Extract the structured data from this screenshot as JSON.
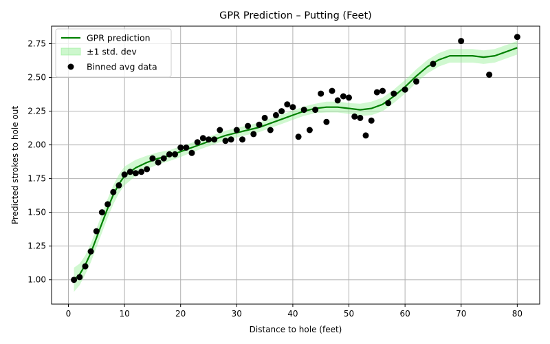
{
  "chart_data": {
    "type": "scatter",
    "title": "GPR Prediction – Putting (Feet)",
    "xlabel": "Distance to hole (feet)",
    "ylabel": "Predicted strokes to hole out",
    "xlim": [
      -3,
      84
    ],
    "ylim": [
      0.82,
      2.88
    ],
    "xticks": [
      0,
      10,
      20,
      30,
      40,
      50,
      60,
      70,
      80
    ],
    "yticks": [
      1.0,
      1.25,
      1.5,
      1.75,
      2.0,
      2.25,
      2.5,
      2.75
    ],
    "xtick_labels": [
      "0",
      "10",
      "20",
      "30",
      "40",
      "50",
      "60",
      "70",
      "80"
    ],
    "ytick_labels": [
      "1.00",
      "1.25",
      "1.50",
      "1.75",
      "2.00",
      "2.25",
      "2.50",
      "2.75"
    ],
    "grid": true,
    "legend_position": "top-left",
    "colors": {
      "prediction": "#008000",
      "band": "#90ee90",
      "points": "#000000",
      "grid": "#b0b0b0"
    },
    "series": [
      {
        "name": "GPR prediction",
        "kind": "line",
        "x": [
          1,
          2,
          3,
          4,
          5,
          6,
          7,
          8,
          9,
          10,
          12,
          14,
          16,
          18,
          20,
          22,
          24,
          26,
          28,
          30,
          32,
          34,
          36,
          38,
          40,
          42,
          44,
          46,
          48,
          50,
          52,
          54,
          56,
          58,
          60,
          62,
          64,
          66,
          68,
          70,
          72,
          74,
          76,
          78,
          80
        ],
        "y": [
          1.0,
          1.04,
          1.11,
          1.2,
          1.31,
          1.42,
          1.53,
          1.63,
          1.71,
          1.77,
          1.83,
          1.87,
          1.9,
          1.92,
          1.95,
          1.98,
          2.01,
          2.04,
          2.07,
          2.09,
          2.11,
          2.13,
          2.16,
          2.19,
          2.22,
          2.25,
          2.27,
          2.28,
          2.28,
          2.27,
          2.26,
          2.27,
          2.3,
          2.36,
          2.43,
          2.51,
          2.58,
          2.63,
          2.66,
          2.66,
          2.66,
          2.65,
          2.66,
          2.69,
          2.72
        ]
      },
      {
        "name": "±1 std. dev",
        "kind": "band",
        "half_width": [
          0.09,
          0.08,
          0.07,
          0.07,
          0.07,
          0.07,
          0.07,
          0.07,
          0.07,
          0.07,
          0.06,
          0.05,
          0.045,
          0.04,
          0.04,
          0.035,
          0.035,
          0.035,
          0.035,
          0.035,
          0.035,
          0.035,
          0.035,
          0.035,
          0.035,
          0.035,
          0.035,
          0.04,
          0.04,
          0.04,
          0.045,
          0.05,
          0.05,
          0.05,
          0.05,
          0.05,
          0.05,
          0.05,
          0.05,
          0.05,
          0.05,
          0.05,
          0.05,
          0.05,
          0.05
        ]
      },
      {
        "name": "Binned avg data",
        "kind": "scatter",
        "points": [
          [
            1,
            1.0
          ],
          [
            2,
            1.02
          ],
          [
            3,
            1.1
          ],
          [
            4,
            1.21
          ],
          [
            5,
            1.36
          ],
          [
            6,
            1.5
          ],
          [
            7,
            1.56
          ],
          [
            8,
            1.65
          ],
          [
            9,
            1.7
          ],
          [
            10,
            1.78
          ],
          [
            11,
            1.8
          ],
          [
            12,
            1.79
          ],
          [
            13,
            1.8
          ],
          [
            14,
            1.82
          ],
          [
            15,
            1.9
          ],
          [
            16,
            1.87
          ],
          [
            17,
            1.9
          ],
          [
            18,
            1.93
          ],
          [
            19,
            1.93
          ],
          [
            20,
            1.98
          ],
          [
            21,
            1.98
          ],
          [
            22,
            1.94
          ],
          [
            23,
            2.02
          ],
          [
            24,
            2.05
          ],
          [
            25,
            2.04
          ],
          [
            26,
            2.04
          ],
          [
            27,
            2.11
          ],
          [
            28,
            2.03
          ],
          [
            29,
            2.04
          ],
          [
            30,
            2.11
          ],
          [
            31,
            2.04
          ],
          [
            32,
            2.14
          ],
          [
            33,
            2.08
          ],
          [
            34,
            2.15
          ],
          [
            35,
            2.2
          ],
          [
            36,
            2.11
          ],
          [
            37,
            2.22
          ],
          [
            38,
            2.25
          ],
          [
            39,
            2.3
          ],
          [
            40,
            2.28
          ],
          [
            41,
            2.06
          ],
          [
            42,
            2.26
          ],
          [
            43,
            2.11
          ],
          [
            44,
            2.26
          ],
          [
            45,
            2.38
          ],
          [
            46,
            2.17
          ],
          [
            47,
            2.4
          ],
          [
            48,
            2.33
          ],
          [
            49,
            2.36
          ],
          [
            50,
            2.35
          ],
          [
            51,
            2.21
          ],
          [
            52,
            2.2
          ],
          [
            53,
            2.07
          ],
          [
            54,
            2.18
          ],
          [
            55,
            2.39
          ],
          [
            56,
            2.4
          ],
          [
            57,
            2.31
          ],
          [
            58,
            2.38
          ],
          [
            60,
            2.41
          ],
          [
            62,
            2.47
          ],
          [
            65,
            2.6
          ],
          [
            70,
            2.77
          ],
          [
            75,
            2.52
          ],
          [
            80,
            2.8
          ]
        ]
      }
    ]
  }
}
